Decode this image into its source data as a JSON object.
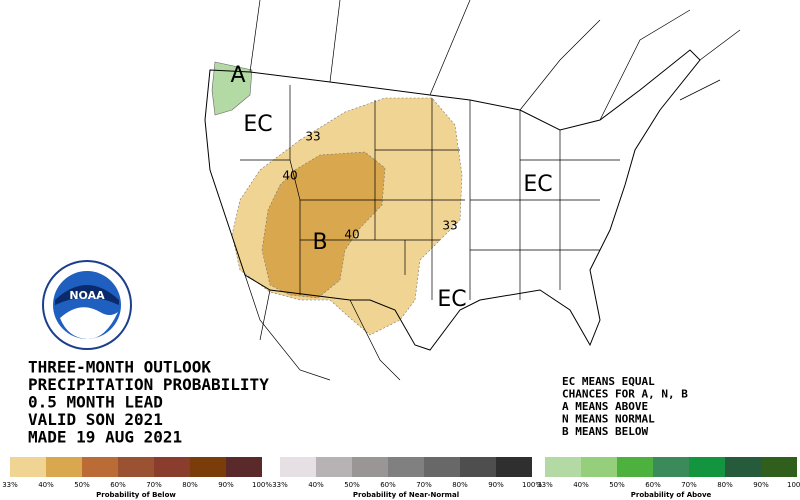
{
  "map_labels": [
    {
      "text": "EC"
    },
    {
      "text": "EC"
    },
    {
      "text": "EC"
    },
    {
      "text": "A"
    },
    {
      "text": "B"
    },
    {
      "text": "33"
    },
    {
      "text": "40"
    },
    {
      "text": "40"
    },
    {
      "text": "33"
    }
  ],
  "logo": {
    "text": "NOAA"
  },
  "outlook": {
    "lines": [
      "THREE-MONTH OUTLOOK",
      "PRECIPITATION PROBABILITY",
      "0.5 MONTH LEAD",
      "VALID SON 2021",
      "MADE 19 AUG 2021"
    ]
  },
  "legend_note": {
    "lines": [
      "EC MEANS EQUAL",
      "CHANCES FOR A, N, B",
      "A MEANS ABOVE",
      "N MEANS NORMAL",
      "B MEANS BELOW"
    ]
  },
  "color_scales": [
    {
      "title": "Probability of Below",
      "labels": [
        "33%",
        "40%",
        "50%",
        "60%",
        "70%",
        "80%",
        "90%",
        "100%"
      ],
      "colors": [
        "#f0d493",
        "#d8a74e",
        "#bb6b36",
        "#9b5232",
        "#8a3c2d",
        "#7a3d0a",
        "#5a2a2a"
      ]
    },
    {
      "title": "Probability of Near-Normal",
      "labels": [
        "33%",
        "40%",
        "50%",
        "60%",
        "70%",
        "80%",
        "90%",
        "100%"
      ],
      "colors": [
        "#e6dfe3",
        "#b7b3b5",
        "#9a9696",
        "#808080",
        "#696868",
        "#4e4e4e",
        "#2f2f2f"
      ]
    },
    {
      "title": "Probability of Above",
      "labels": [
        "33%",
        "40%",
        "50%",
        "60%",
        "70%",
        "80%",
        "90%",
        "100%"
      ],
      "colors": [
        "#b3d9a5",
        "#95cf7c",
        "#4db13e",
        "#3b8a5a",
        "#12953e",
        "#255b3a",
        "#2f5e1d"
      ]
    }
  ]
}
